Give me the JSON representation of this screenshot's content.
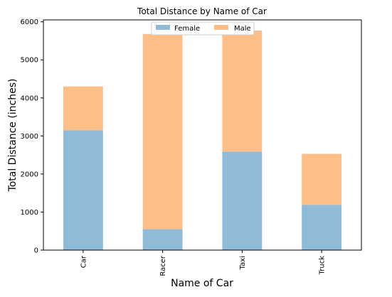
{
  "chart_data": {
    "type": "bar",
    "stacked": true,
    "title": "Total Distance by Name of Car",
    "xlabel": "Name of Car",
    "ylabel": "Total Distance (inches)",
    "categories": [
      "Car",
      "Racer",
      "Taxi",
      "Truck"
    ],
    "series": [
      {
        "name": "Female",
        "color": "#8fbad8",
        "values": [
          3150,
          550,
          2590,
          1190
        ]
      },
      {
        "name": "Male",
        "color": "#fdbf87",
        "values": [
          1150,
          5130,
          3180,
          1340
        ]
      }
    ],
    "ylim": [
      0,
      6050
    ],
    "yticks": [
      0,
      1000,
      2000,
      3000,
      4000,
      5000,
      6000
    ],
    "grid": false,
    "legend_position": "top-center"
  }
}
